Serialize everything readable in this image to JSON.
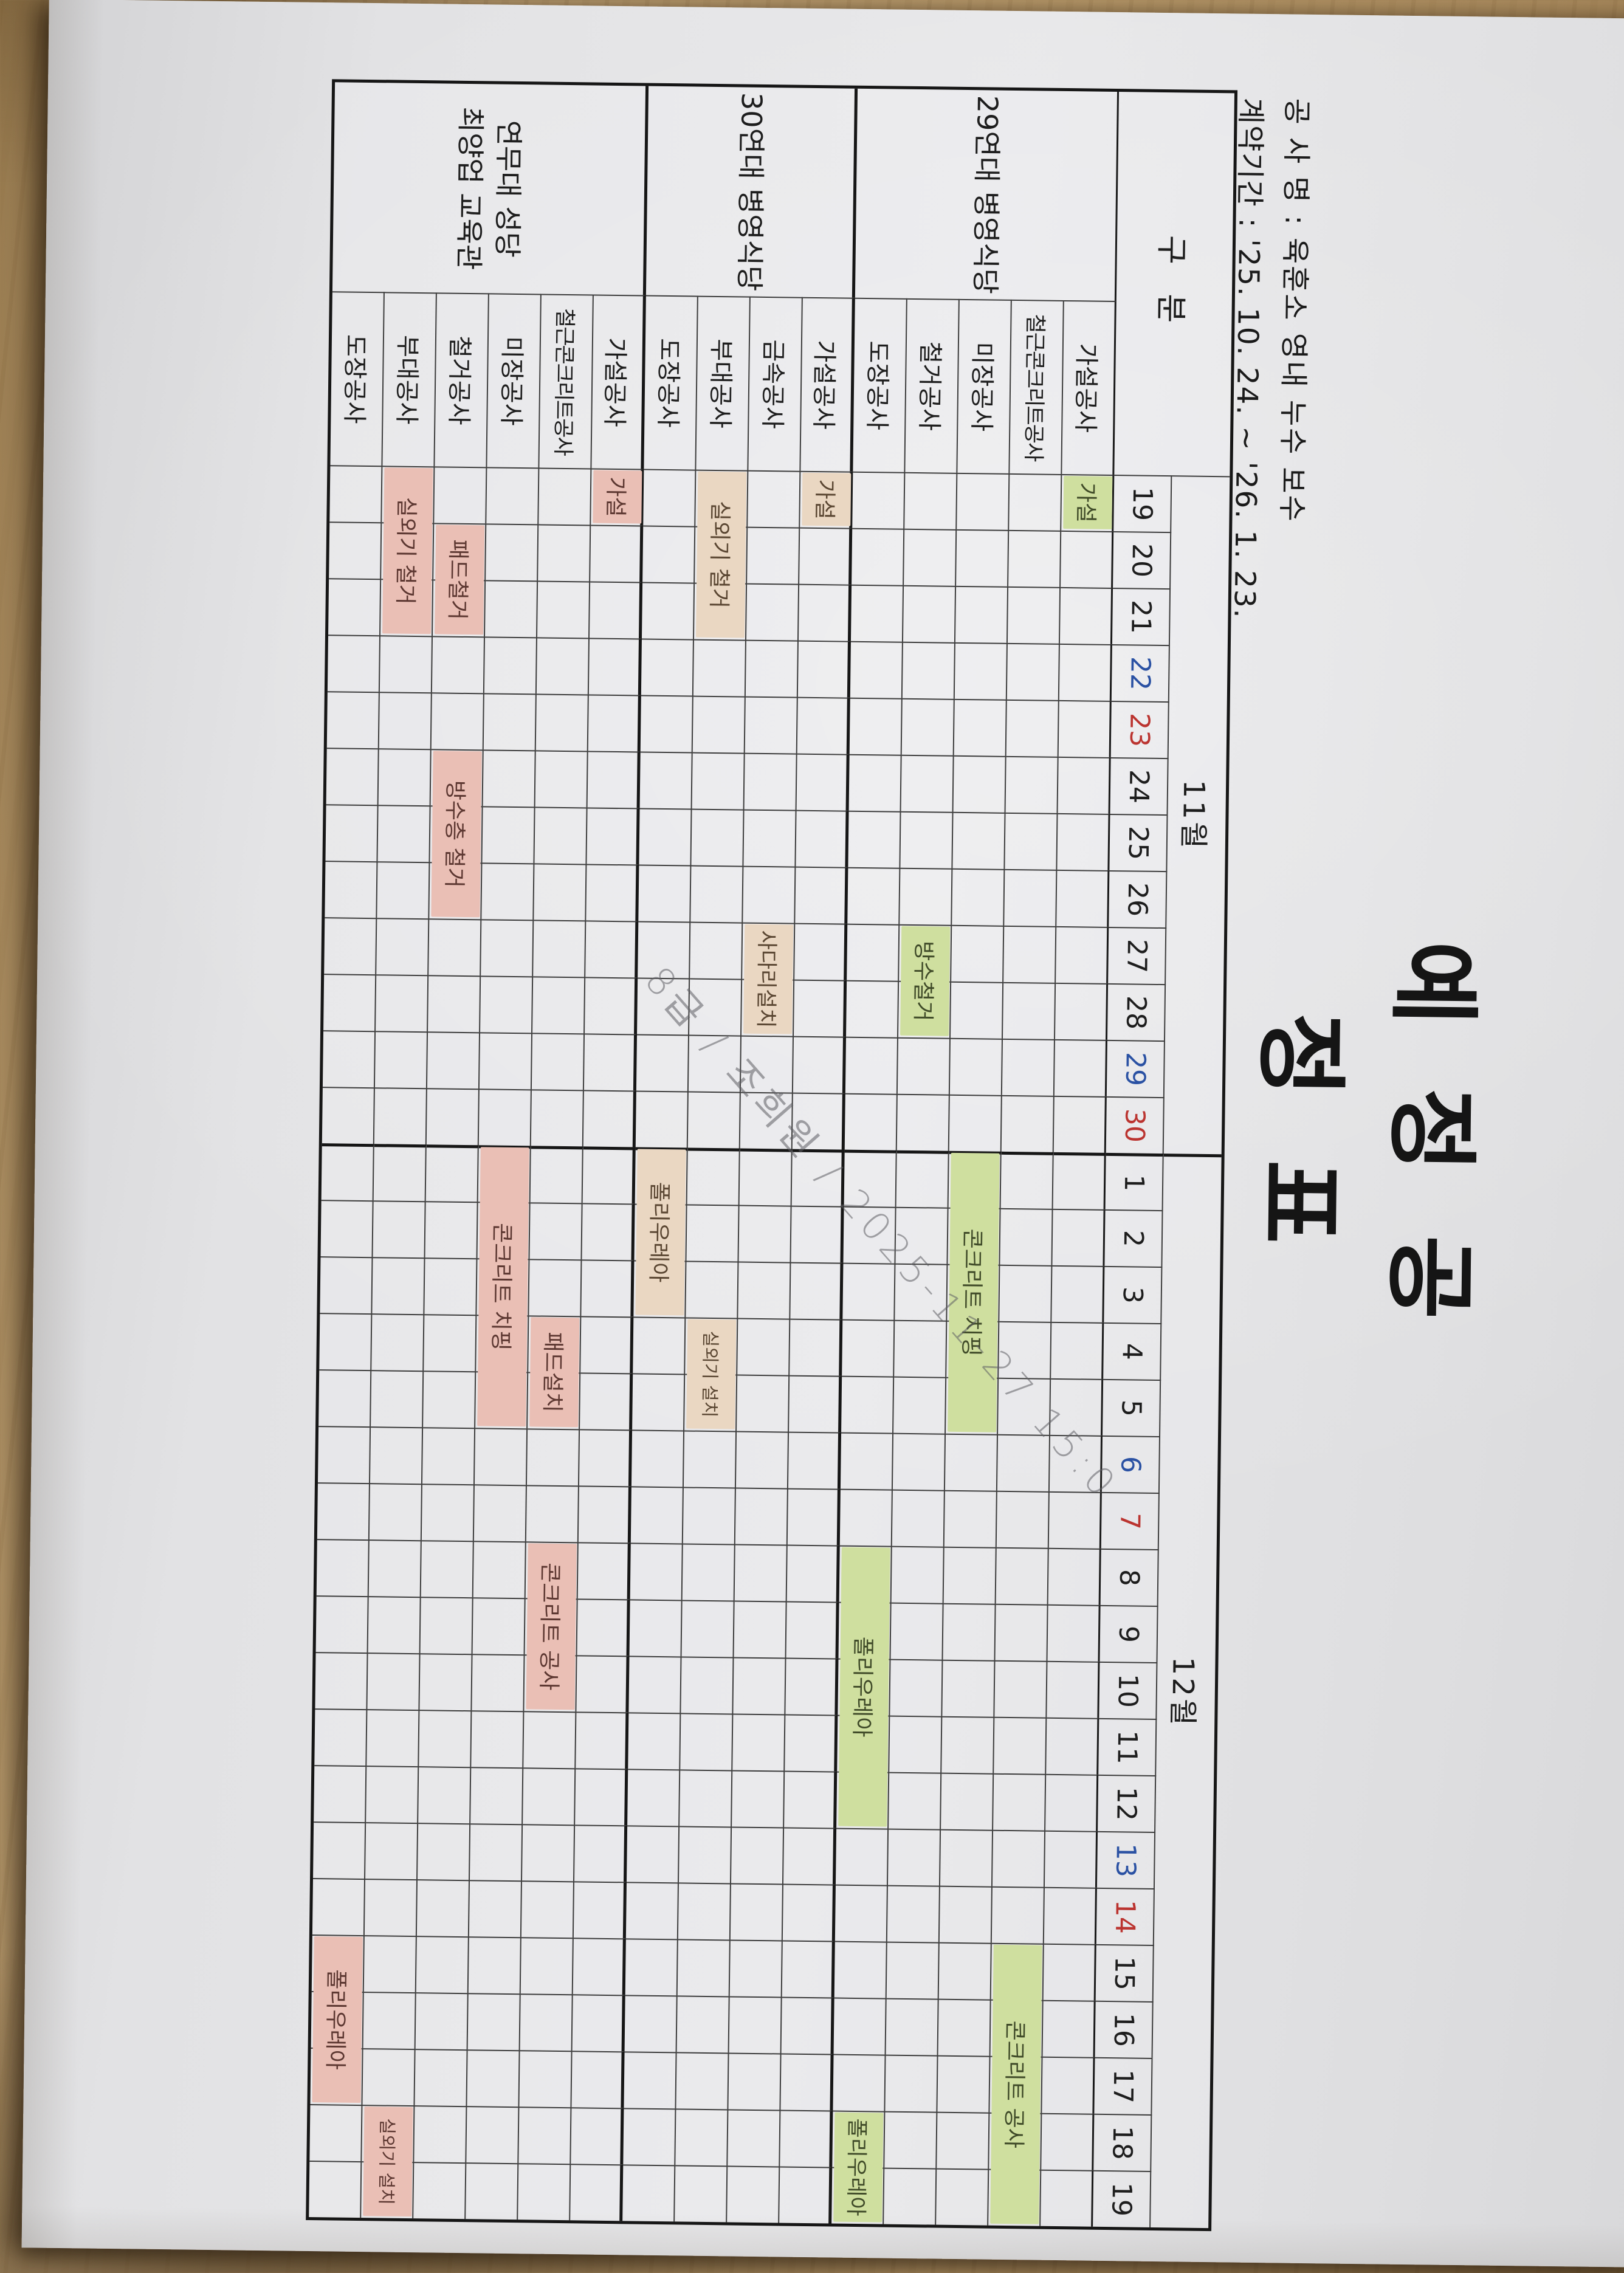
{
  "page_header": {
    "title": "예 정 공 정 표",
    "project_line": "공 사 명 : 육훈소 영내 누수 보수",
    "contract_line": "계약기간 : '25. 10. 24.  ~  '26. 1. 23."
  },
  "watermark": {
    "text": "8급 / 조희원 / 2025-11-27 15:0"
  },
  "palette": {
    "bar_green": "#cfdf9f",
    "bar_green_text": "#3f4a28",
    "bar_tan": "#ead7c2",
    "bar_tan_text": "#5a4632",
    "bar_pink": "#eabfb5",
    "bar_pink_text": "#5c3731",
    "saturday": "#2a51a3",
    "sunday": "#bb3430",
    "grid_line": "#3d3d3d",
    "grid_line_heavy": "#161616",
    "paper": "#e4e4e6",
    "wood": "#b3956a"
  },
  "table": {
    "corner_label": "구 분",
    "months": [
      {
        "label": "11월",
        "days": [
          {
            "n": 19
          },
          {
            "n": 20
          },
          {
            "n": 21
          },
          {
            "n": 22,
            "w": "sat"
          },
          {
            "n": 23,
            "w": "sun"
          },
          {
            "n": 24
          },
          {
            "n": 25
          },
          {
            "n": 26
          },
          {
            "n": 27
          },
          {
            "n": 28
          },
          {
            "n": 29,
            "w": "sat"
          },
          {
            "n": 30,
            "w": "sun"
          }
        ]
      },
      {
        "label": "12월",
        "days": [
          {
            "n": 1
          },
          {
            "n": 2
          },
          {
            "n": 3
          },
          {
            "n": 4
          },
          {
            "n": 5
          },
          {
            "n": 6,
            "w": "sat"
          },
          {
            "n": 7,
            "w": "sun"
          },
          {
            "n": 8
          },
          {
            "n": 9
          },
          {
            "n": 10
          },
          {
            "n": 11
          },
          {
            "n": 12
          },
          {
            "n": 13,
            "w": "sat"
          },
          {
            "n": 14,
            "w": "sun"
          },
          {
            "n": 15
          },
          {
            "n": 16
          },
          {
            "n": 17
          },
          {
            "n": 18
          },
          {
            "n": 19
          }
        ]
      }
    ],
    "groups": [
      {
        "name": "29연대 병영식당",
        "bar_color": "#cfdf9f",
        "text_color": "#3f4a28",
        "rows": [
          {
            "label": "가설공사",
            "bars": [
              {
                "text": "가설",
                "start": 0,
                "len": 1
              }
            ]
          },
          {
            "label": "철근콘크리트공사",
            "bars": [
              {
                "text": "콘크리트 공사",
                "start": 26,
                "len": 5
              }
            ]
          },
          {
            "label": "미장공사",
            "bars": [
              {
                "text": "콘크리트 치핑",
                "start": 12,
                "len": 5
              }
            ]
          },
          {
            "label": "철거공사",
            "bars": [
              {
                "text": "방수철거",
                "start": 8,
                "len": 2
              }
            ]
          },
          {
            "label": "도장공사",
            "bars": [
              {
                "text": "폴리우레아",
                "start": 19,
                "len": 5
              },
              {
                "text": "폴리우레아",
                "start": 29,
                "len": 2
              }
            ]
          }
        ]
      },
      {
        "name": "30연대 병영식당",
        "bar_color": "#ead7c2",
        "text_color": "#5a4632",
        "rows": [
          {
            "label": "가설공사",
            "bars": [
              {
                "text": "가설",
                "start": 0,
                "len": 1
              }
            ]
          },
          {
            "label": "금속공사",
            "bars": [
              {
                "text": "사다리설치",
                "start": 8,
                "len": 2
              }
            ]
          },
          {
            "label": "부대공사",
            "bars": [
              {
                "text": "실외기 철거",
                "start": 0,
                "len": 3
              },
              {
                "text": "실외기 설치",
                "start": 15,
                "len": 2
              }
            ]
          },
          {
            "label": "도장공사",
            "bars": [
              {
                "text": "폴리우레아",
                "start": 12,
                "len": 3
              }
            ]
          }
        ]
      },
      {
        "name": "연무대 성당\n최양업 교육관",
        "bar_color": "#eabfb5",
        "text_color": "#5c3731",
        "rows": [
          {
            "label": "가설공사",
            "bars": [
              {
                "text": "가설",
                "start": 0,
                "len": 1
              }
            ]
          },
          {
            "label": "철근콘크리트공사",
            "bars": [
              {
                "text": "패드설치",
                "start": 15,
                "len": 2
              },
              {
                "text": "콘크리트 공사",
                "start": 19,
                "len": 3
              }
            ]
          },
          {
            "label": "미장공사",
            "bars": [
              {
                "text": "콘크리트 치핑",
                "start": 12,
                "len": 5
              }
            ]
          },
          {
            "label": "철거공사",
            "bars": [
              {
                "text": "패드철거",
                "start": 1,
                "len": 2
              },
              {
                "text": "방수층 철거",
                "start": 5,
                "len": 3
              }
            ]
          },
          {
            "label": "부대공사",
            "bars": [
              {
                "text": "실외기 철거",
                "start": 0,
                "len": 3
              },
              {
                "text": "실외기 설치",
                "start": 29,
                "len": 2
              }
            ]
          },
          {
            "label": "도장공사",
            "bars": [
              {
                "text": "폴리우레아",
                "start": 26,
                "len": 3
              }
            ]
          }
        ]
      }
    ]
  }
}
